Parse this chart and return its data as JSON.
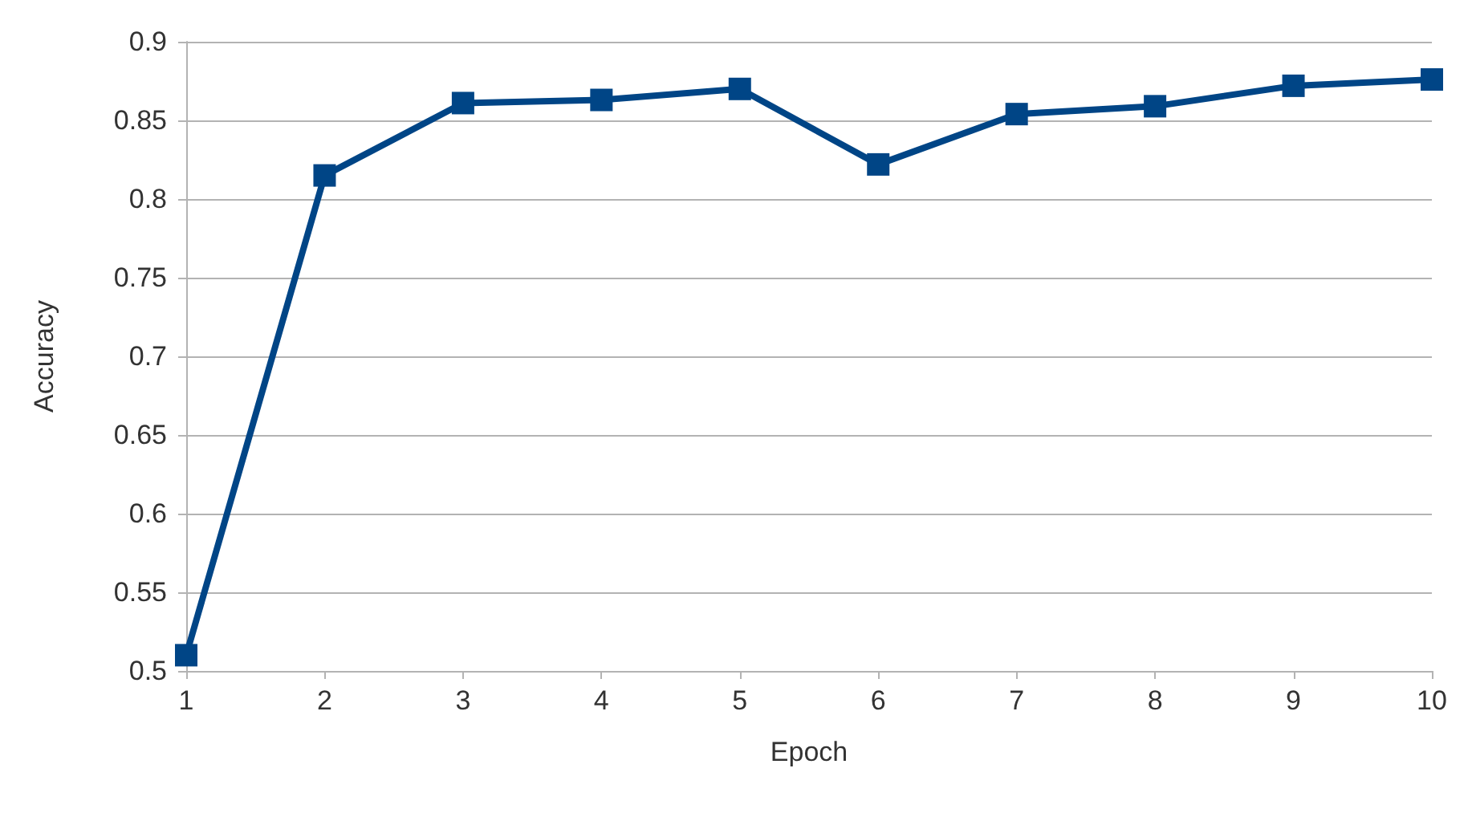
{
  "chart_data": {
    "type": "line",
    "xlabel": "Epoch",
    "ylabel": "Accuracy",
    "x": [
      1,
      2,
      3,
      4,
      5,
      6,
      7,
      8,
      9,
      10
    ],
    "series": [
      {
        "color": "#004586",
        "values": [
          0.51,
          0.815,
          0.861,
          0.863,
          0.87,
          0.822,
          0.854,
          0.859,
          0.872,
          0.876
        ]
      }
    ],
    "xlim": [
      1,
      10
    ],
    "xticks": [
      1,
      2,
      3,
      4,
      5,
      6,
      7,
      8,
      9,
      10
    ],
    "ylim": [
      0.5,
      0.9
    ],
    "yticks": [
      0.5,
      0.55,
      0.6,
      0.65,
      0.7,
      0.75,
      0.8,
      0.85,
      0.9
    ],
    "grid": "y",
    "marker": "square",
    "line_style": "solid"
  }
}
